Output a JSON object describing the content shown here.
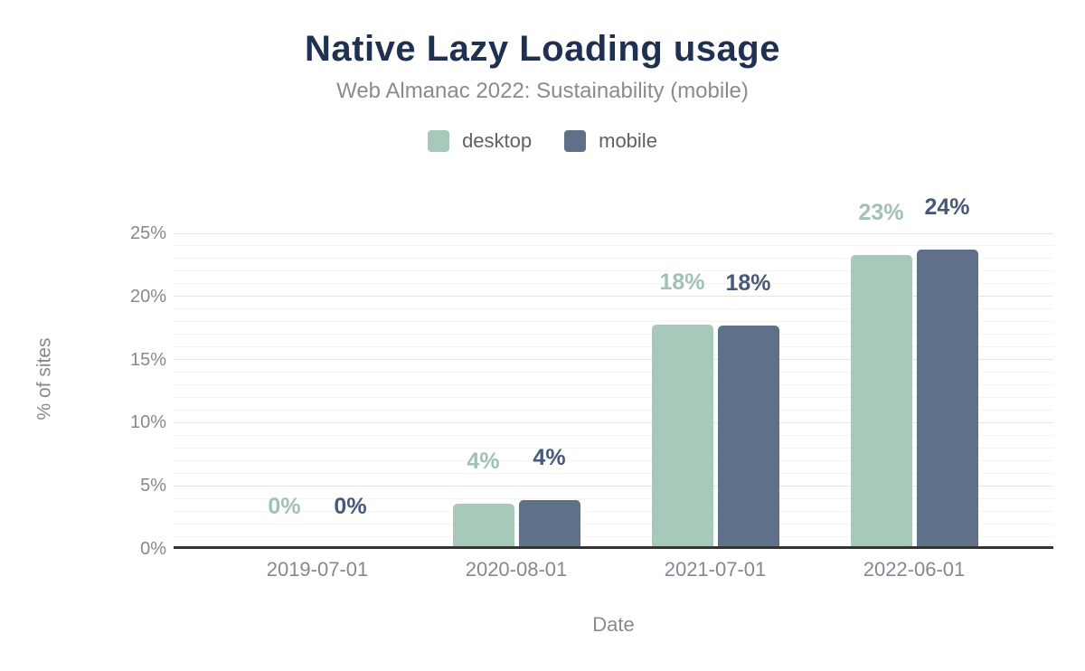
{
  "chart": {
    "title": "Native Lazy Loading usage",
    "subtitle": "Web Almanac 2022: Sustainability (mobile)",
    "ylabel": "% of sites",
    "xlabel": "Date",
    "legend": [
      {
        "label": "desktop",
        "color": "#a7c9b9"
      },
      {
        "label": "mobile",
        "color": "#5f7089"
      }
    ]
  },
  "chart_data": {
    "type": "bar",
    "title": "Native Lazy Loading usage",
    "subtitle": "Web Almanac 2022: Sustainability (mobile)",
    "xlabel": "Date",
    "ylabel": "% of sites",
    "categories": [
      "2019-07-01",
      "2020-08-01",
      "2021-07-01",
      "2022-06-01"
    ],
    "series": [
      {
        "name": "desktop",
        "color": "#a7c9b9",
        "label_color": "#a0c3b1",
        "values": [
          0,
          3.6,
          17.8,
          23.3
        ],
        "labels": [
          "0%",
          "4%",
          "18%",
          "23%"
        ]
      },
      {
        "name": "mobile",
        "color": "#5f7089",
        "label_color": "#47597a",
        "values": [
          0,
          3.9,
          17.7,
          23.7
        ],
        "labels": [
          "0%",
          "4%",
          "18%",
          "24%"
        ]
      }
    ],
    "ylim": [
      0,
      25
    ],
    "ytick_labels": [
      "0%",
      "5%",
      "10%",
      "15%",
      "20%",
      "25%"
    ],
    "ytick_values": [
      0,
      5,
      10,
      15,
      20,
      25
    ],
    "grid": "horizontal, minor every 1%, major every 5%",
    "legend_position": "top center",
    "axis_colors": {
      "axis_line": "#343434",
      "tick_text": "#85898f"
    },
    "title_color": "#1f3050",
    "subtitle_color": "#8b8b8b"
  }
}
